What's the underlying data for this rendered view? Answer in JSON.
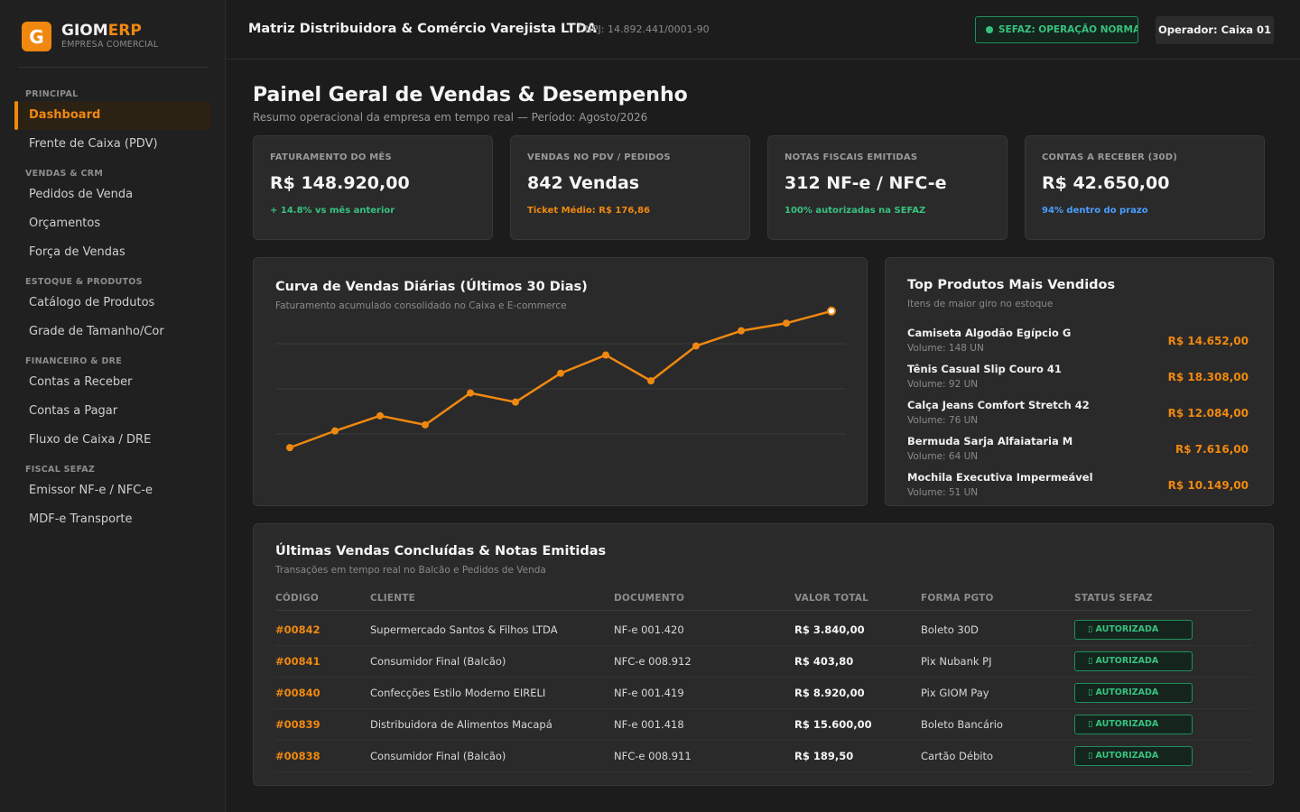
{
  "brand": {
    "logo_letter": "G",
    "name_main": "GIOM",
    "name_accent": "ERP",
    "subtitle": "EMPRESA COMERCIAL",
    "accent_color": "#f0880f"
  },
  "nav": {
    "sections": [
      {
        "title": "PRINCIPAL",
        "items": [
          {
            "label": "Dashboard",
            "active": true
          },
          {
            "label": "Frente de Caixa (PDV)"
          }
        ]
      },
      {
        "title": "VENDAS & CRM",
        "items": [
          {
            "label": "Pedidos de Venda"
          },
          {
            "label": "Orçamentos"
          },
          {
            "label": "Força de Vendas"
          }
        ]
      },
      {
        "title": "ESTOQUE & PRODUTOS",
        "items": [
          {
            "label": "Catálogo de Produtos"
          },
          {
            "label": "Grade de Tamanho/Cor"
          }
        ]
      },
      {
        "title": "FINANCEIRO & DRE",
        "items": [
          {
            "label": "Contas a Receber"
          },
          {
            "label": "Contas a Pagar"
          },
          {
            "label": "Fluxo de Caixa / DRE"
          }
        ]
      },
      {
        "title": "FISCAL SEFAZ",
        "items": [
          {
            "label": "Emissor NF-e / NFC-e"
          },
          {
            "label": "MDF-e Transporte"
          }
        ]
      }
    ]
  },
  "header": {
    "company": "Matriz Distribuidora & Comércio Varejista LTDA",
    "cnpj": "CNPJ: 14.892.441/0001-90",
    "sefaz_status": "SEFAZ: OPERAÇÃO NORMAL",
    "operator": "Operador: Caixa 01"
  },
  "page": {
    "title": "Painel Geral de Vendas & Desempenho",
    "subtitle": "Resumo operacional da empresa em tempo real — Período: Agosto/2026"
  },
  "kpis": [
    {
      "label": "FATURAMENTO DO MÊS",
      "value": "R$ 148.920,00",
      "note": "+ 14.8% vs mês anterior",
      "note_color": "#37c27f"
    },
    {
      "label": "VENDAS NO PDV / PEDIDOS",
      "value": "842 Vendas",
      "note": "Ticket Médio: R$ 176,86",
      "note_color": "#f0880f"
    },
    {
      "label": "NOTAS FISCAIS EMITIDAS",
      "value": "312 NF-e / NFC-e",
      "note": "100% autorizadas na SEFAZ",
      "note_color": "#37c27f"
    },
    {
      "label": "CONTAS A RECEBER (30D)",
      "value": "R$ 42.650,00",
      "note": "94% dentro do prazo",
      "note_color": "#4a9eff"
    }
  ],
  "sales_chart": {
    "title": "Curva de Vendas Diárias (Últimos 30 Dias)",
    "subtitle": "Faturamento acumulado consolidado no Caixa e E-commerce"
  },
  "chart_data": {
    "type": "line",
    "title": "Curva de Vendas Diárias (Últimos 30 Dias)",
    "values": [
      13,
      24,
      34,
      28,
      49,
      43,
      62,
      74,
      57,
      80,
      90,
      95,
      103
    ],
    "ylim": [
      0,
      110
    ],
    "grid": true,
    "line_color": "#f0880f"
  },
  "top_products": {
    "title": "Top Produtos Mais Vendidos",
    "subtitle": "Itens de maior giro no estoque",
    "items": [
      {
        "name": "Camiseta Algodão Egípcio G",
        "volume": "Volume: 148 UN",
        "value": "R$ 14.652,00"
      },
      {
        "name": "Tênis Casual Slip Couro 41",
        "volume": "Volume: 92 UN",
        "value": "R$ 18.308,00"
      },
      {
        "name": "Calça Jeans Comfort Stretch 42",
        "volume": "Volume: 76 UN",
        "value": "R$ 12.084,00"
      },
      {
        "name": "Bermuda Sarja Alfaiataria M",
        "volume": "Volume: 64 UN",
        "value": "R$ 7.616,00"
      },
      {
        "name": "Mochila Executiva Impermeável",
        "volume": "Volume: 51 UN",
        "value": "R$ 10.149,00"
      }
    ]
  },
  "sales_table": {
    "title": "Últimas Vendas Concluídas & Notas Emitidas",
    "subtitle": "Transações em tempo real no Balcão e Pedidos de Venda",
    "columns": [
      "CÓDIGO",
      "CLIENTE",
      "DOCUMENTO",
      "VALOR TOTAL",
      "FORMA PGTO",
      "STATUS SEFAZ"
    ],
    "rows": [
      {
        "code": "#00842",
        "client": "Supermercado Santos & Filhos LTDA",
        "doc": "NF-e 001.420",
        "value": "R$ 3.840,00",
        "payment": "Boleto 30D",
        "status": "AUTORIZADA"
      },
      {
        "code": "#00841",
        "client": "Consumidor Final (Balcão)",
        "doc": "NFC-e 008.912",
        "value": "R$ 403,80",
        "payment": "Pix Nubank PJ",
        "status": "AUTORIZADA"
      },
      {
        "code": "#00840",
        "client": "Confecções Estilo Moderno EIRELI",
        "doc": "NF-e 001.419",
        "value": "R$ 8.920,00",
        "payment": "Pix GIOM Pay",
        "status": "AUTORIZADA"
      },
      {
        "code": "#00839",
        "client": "Distribuidora de Alimentos Macapá",
        "doc": "NF-e 001.418",
        "value": "R$ 15.600,00",
        "payment": "Boleto Bancário",
        "status": "AUTORIZADA"
      },
      {
        "code": "#00838",
        "client": "Consumidor Final (Balcão)",
        "doc": "NFC-e 008.911",
        "value": "R$ 189,50",
        "payment": "Cartão Débito",
        "status": "AUTORIZADA"
      }
    ]
  }
}
